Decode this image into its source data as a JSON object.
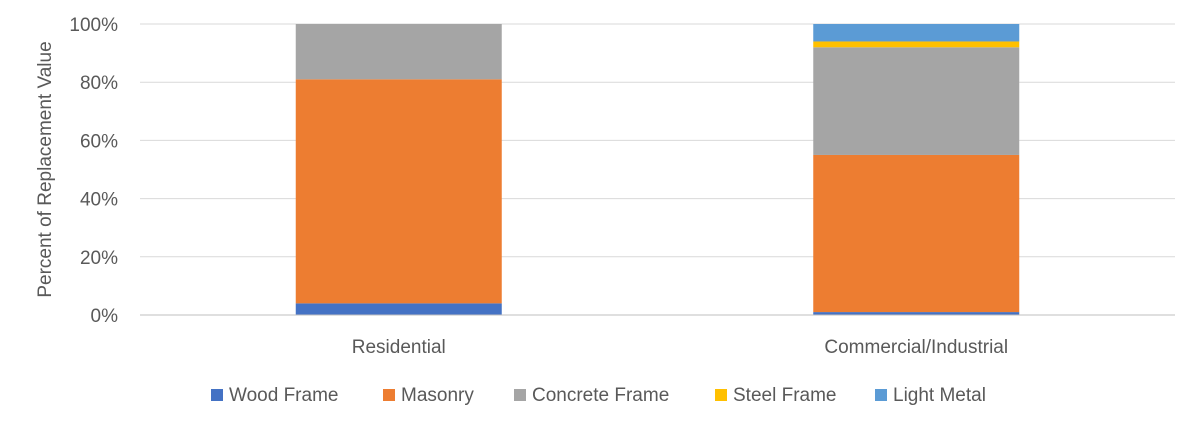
{
  "chart_data": {
    "type": "bar",
    "stacked": true,
    "categories": [
      "Residential",
      "Commercial/Industrial"
    ],
    "series": [
      {
        "name": "Wood Frame",
        "values": [
          4,
          1
        ],
        "color": "#4472C4"
      },
      {
        "name": "Masonry",
        "values": [
          77,
          54
        ],
        "color": "#ED7D31"
      },
      {
        "name": "Concrete Frame",
        "values": [
          19,
          37
        ],
        "color": "#A5A5A5"
      },
      {
        "name": "Steel Frame",
        "values": [
          0,
          2
        ],
        "color": "#FFC000"
      },
      {
        "name": "Light Metal",
        "values": [
          0,
          6
        ],
        "color": "#5B9BD5"
      }
    ],
    "title": "",
    "xlabel": "",
    "ylabel": "Percent of Replacement Value",
    "ylim": [
      0,
      100
    ],
    "yticks": [
      "0%",
      "20%",
      "40%",
      "60%",
      "80%",
      "100%"
    ],
    "grid": true,
    "legend_position": "bottom"
  }
}
